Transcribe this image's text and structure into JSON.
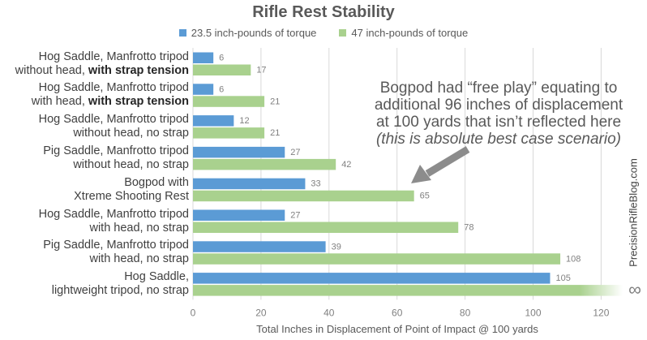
{
  "chart_data": {
    "type": "bar",
    "orientation": "horizontal",
    "title": "Rifle Rest Stability",
    "xlabel": "Total Inches in Displacement of Point of Impact @ 100 yards",
    "ylabel": "",
    "xlim": [
      0,
      130
    ],
    "xticks": [
      0,
      20,
      40,
      60,
      80,
      100,
      120
    ],
    "grid": true,
    "legend_position": "top",
    "categories": [
      {
        "line1": "Hog Saddle, Manfrotto tripod",
        "line2": "without head, ",
        "line2_bold": "with strap tension"
      },
      {
        "line1": "Hog Saddle, Manfrotto tripod",
        "line2": "with head, ",
        "line2_bold": "with strap tension"
      },
      {
        "line1": "Hog Saddle, Manfrotto tripod",
        "line2": "without head, no strap",
        "line2_bold": ""
      },
      {
        "line1": "Pig Saddle, Manfrotto tripod",
        "line2": "without head, no strap",
        "line2_bold": ""
      },
      {
        "line1": "Bogpod with",
        "line2": "Xtreme Shooting Rest",
        "line2_bold": ""
      },
      {
        "line1": "Hog Saddle, Manfrotto tripod",
        "line2": "with head, no strap",
        "line2_bold": ""
      },
      {
        "line1": "Pig Saddle, Manfrotto tripod",
        "line2": "with head, no strap",
        "line2_bold": ""
      },
      {
        "line1": "Hog Saddle,",
        "line2": "lightweight tripod, no strap",
        "line2_bold": ""
      }
    ],
    "series": [
      {
        "name": "23.5 inch-pounds of torque",
        "color": "#5b9bd5",
        "values": [
          6,
          6,
          12,
          27,
          33,
          27,
          39,
          105
        ],
        "labels": [
          "6",
          "6",
          "12",
          "27",
          "33",
          "27",
          "39",
          "105"
        ]
      },
      {
        "name": "47 inch-pounds of torque",
        "color": "#a9d18e",
        "values": [
          17,
          21,
          21,
          42,
          65,
          78,
          108,
          null
        ],
        "labels": [
          "17",
          "21",
          "21",
          "42",
          "65",
          "78",
          "108",
          "∞"
        ]
      }
    ],
    "annotation": {
      "lines": [
        "Bogpod had “free play” equating to",
        "additional 96 inches of displacement",
        "at 100 yards that isn’t reflected here"
      ],
      "italic_line": "(this is absolute best case scenario)"
    }
  },
  "watermark": "PrecisionRifleBlog.com",
  "colors": {
    "gridline": "#d9d9d9",
    "axis_text": "#808080",
    "arrow": "#8c8c8c"
  }
}
